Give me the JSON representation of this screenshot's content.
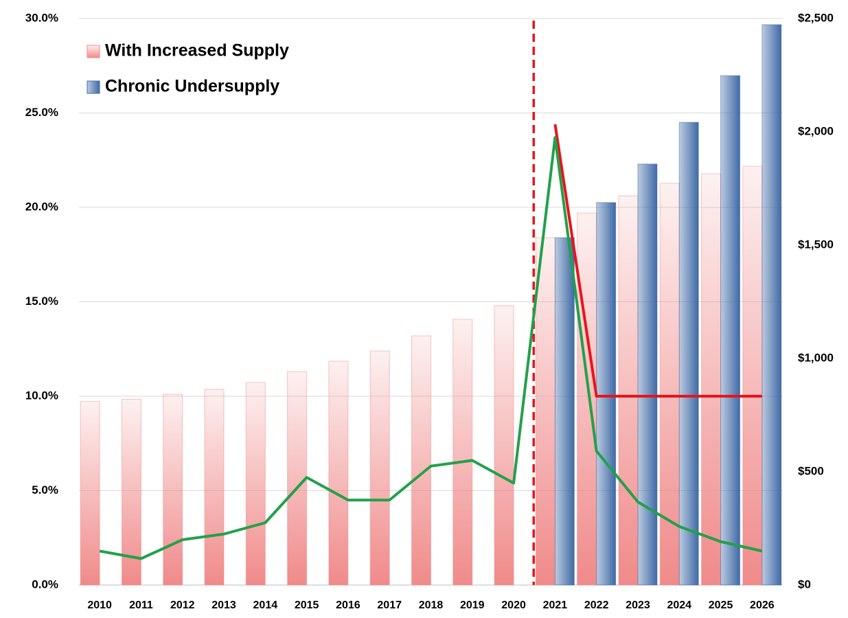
{
  "chart_data": {
    "type": "bar",
    "categories": [
      "2010",
      "2011",
      "2012",
      "2013",
      "2014",
      "2015",
      "2016",
      "2017",
      "2018",
      "2019",
      "2020",
      "2021",
      "2022",
      "2023",
      "2024",
      "2025",
      "2026"
    ],
    "series": [
      {
        "name": "With Increased Supply",
        "type": "bar",
        "axis": "y2",
        "color": "#f08a8a",
        "values": [
          810,
          820,
          842,
          864,
          894,
          942,
          988,
          1033,
          1100,
          1173,
          1233,
          1533,
          1642,
          1718,
          1773,
          1815,
          1848
        ]
      },
      {
        "name": "Chronic Undersupply",
        "type": "bar",
        "axis": "y2",
        "color": "#3f6aa6",
        "values": [
          null,
          null,
          null,
          null,
          null,
          null,
          null,
          null,
          null,
          null,
          null,
          1533,
          1688,
          1858,
          2042,
          2248,
          2473
        ]
      },
      {
        "type": "line",
        "axis": "y",
        "color": "#e8141b",
        "values": [
          null,
          null,
          null,
          null,
          null,
          null,
          null,
          null,
          null,
          null,
          null,
          24.4,
          10.0,
          10.0,
          10.0,
          10.0,
          10.0
        ]
      },
      {
        "type": "line",
        "axis": "y",
        "color": "#22a04b",
        "values": [
          1.8,
          1.4,
          2.4,
          2.7,
          3.3,
          5.7,
          4.5,
          4.5,
          6.3,
          6.6,
          5.4,
          23.7,
          7.1,
          4.4,
          3.1,
          2.3,
          1.8
        ]
      }
    ],
    "ylim": [
      0,
      30
    ],
    "yticks": [
      {
        "value": 0,
        "label": "0.0%"
      },
      {
        "value": 5,
        "label": "5.0%"
      },
      {
        "value": 10,
        "label": "10.0%"
      },
      {
        "value": 15,
        "label": "15.0%"
      },
      {
        "value": 20,
        "label": "20.0%"
      },
      {
        "value": 25,
        "label": "25.0%"
      },
      {
        "value": 30,
        "label": "30.0%"
      }
    ],
    "y2lim": [
      0,
      2500
    ],
    "y2ticks": [
      {
        "value": 0,
        "label": "$0"
      },
      {
        "value": 500,
        "label": "$500"
      },
      {
        "value": 1000,
        "label": "$1,000"
      },
      {
        "value": 1500,
        "label": "$1,500"
      },
      {
        "value": 2000,
        "label": "$2,000"
      },
      {
        "value": 2500,
        "label": "$2,500"
      }
    ],
    "grid": true,
    "legend": "top-left"
  }
}
